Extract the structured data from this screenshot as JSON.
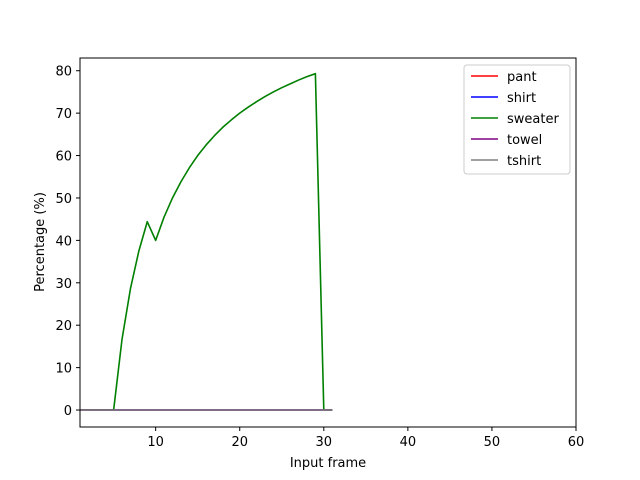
{
  "chart_data": {
    "type": "line",
    "title": "",
    "xlabel": "Input frame",
    "ylabel": "Percentage (%)",
    "xlim": [
      1,
      60
    ],
    "ylim": [
      -4,
      83
    ],
    "xticks": [
      10,
      20,
      30,
      40,
      50,
      60
    ],
    "yticks": [
      0,
      10,
      20,
      30,
      40,
      50,
      60,
      70,
      80
    ],
    "grid": false,
    "legend_position": "top-right",
    "x": [
      1,
      2,
      3,
      4,
      5,
      6,
      7,
      8,
      9,
      10,
      11,
      12,
      13,
      14,
      15,
      16,
      17,
      18,
      19,
      20,
      21,
      22,
      23,
      24,
      25,
      26,
      27,
      28,
      29,
      30,
      31
    ],
    "series": [
      {
        "name": "pant",
        "color": "#ff0000",
        "values": [
          0,
          0,
          0,
          0,
          0,
          0,
          0,
          0,
          0,
          0,
          0,
          0,
          0,
          0,
          0,
          0,
          0,
          0,
          0,
          0,
          0,
          0,
          0,
          0,
          0,
          0,
          0,
          0,
          0,
          0,
          0
        ]
      },
      {
        "name": "shirt",
        "color": "#0000ff",
        "values": [
          0,
          0,
          0,
          0,
          0,
          0,
          0,
          0,
          0,
          0,
          0,
          0,
          0,
          0,
          0,
          0,
          0,
          0,
          0,
          0,
          0,
          0,
          0,
          0,
          0,
          0,
          0,
          0,
          0,
          0,
          0
        ]
      },
      {
        "name": "sweater",
        "color": "#008000",
        "values": [
          0,
          0,
          0,
          0,
          0,
          16.7,
          28.6,
          37.5,
          44.4,
          40.0,
          45.5,
          50.0,
          53.8,
          57.1,
          60.0,
          62.5,
          64.7,
          66.7,
          68.4,
          70.0,
          71.4,
          72.7,
          73.9,
          75.0,
          76.0,
          76.9,
          77.8,
          78.6,
          79.3,
          0,
          0
        ]
      },
      {
        "name": "towel",
        "color": "#800080",
        "values": [
          0,
          0,
          0,
          0,
          0,
          0,
          0,
          0,
          0,
          0,
          0,
          0,
          0,
          0,
          0,
          0,
          0,
          0,
          0,
          0,
          0,
          0,
          0,
          0,
          0,
          0,
          0,
          0,
          0,
          0,
          0
        ]
      },
      {
        "name": "tshirt",
        "color": "#808080",
        "values": [
          0,
          0,
          0,
          0,
          0,
          0,
          0,
          0,
          0,
          0,
          0,
          0,
          0,
          0,
          0,
          0,
          0,
          0,
          0,
          0,
          0,
          0,
          0,
          0,
          0,
          0,
          0,
          0,
          0,
          0,
          0
        ]
      }
    ]
  }
}
